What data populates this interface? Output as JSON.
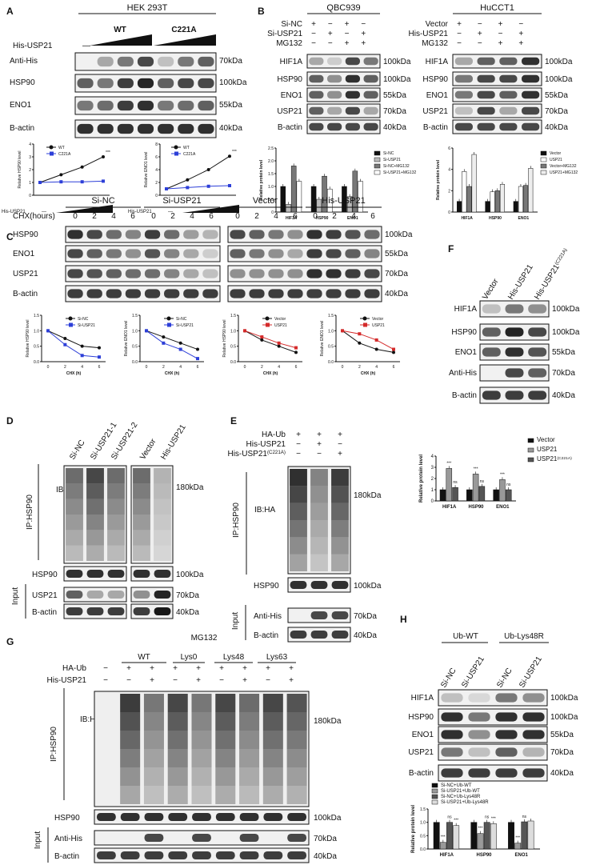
{
  "panels": {
    "A": {
      "letter": "A",
      "cell": "HEK 293T",
      "his_label": "His-USP21",
      "dash": "—",
      "wt": "WT",
      "mut": "C221A",
      "rows": [
        "Anti-His",
        "HSP90",
        "ENO1",
        "B-actin"
      ],
      "kda": [
        "70kDa",
        "100kDa",
        "55kDa",
        "40kDa"
      ],
      "charts": [
        {
          "type": "line",
          "xlabel": "His-USP21",
          "x_dash": "—",
          "ylabel": "Relative HSP90 level",
          "ylim": [
            0,
            4
          ],
          "yticks": [
            "0",
            "1",
            "2",
            "3",
            "4"
          ],
          "sig": "***",
          "series": [
            {
              "name": "WT",
              "values": [
                1,
                1.6,
                2.2,
                3.0
              ]
            },
            {
              "name": "C221A",
              "values": [
                1,
                1.05,
                1.05,
                1.1
              ]
            }
          ]
        },
        {
          "type": "line",
          "xlabel": "His-USP21",
          "x_dash": "—",
          "ylabel": "Relative ENO1 level",
          "ylim": [
            0,
            8
          ],
          "yticks": [
            "0",
            "2",
            "4",
            "6",
            "8"
          ],
          "sig": "***",
          "series": [
            {
              "name": "WT",
              "values": [
                1,
                2.4,
                4.0,
                6.1
              ]
            },
            {
              "name": "C221A",
              "values": [
                1,
                1.2,
                1.4,
                1.5
              ]
            }
          ]
        }
      ]
    },
    "B": {
      "letter": "B",
      "left": {
        "cell": "QBC939",
        "cond": [
          {
            "label": "Si-NC",
            "signs": [
              "+",
              "−",
              "+",
              "−"
            ]
          },
          {
            "label": "Si-USP21",
            "signs": [
              "−",
              "+",
              "−",
              "+"
            ]
          },
          {
            "label": "MG132",
            "signs": [
              "−",
              "−",
              "+",
              "+"
            ]
          }
        ],
        "rows": [
          "HIF1A",
          "HSP90",
          "ENO1",
          "USP21",
          "B-actin"
        ],
        "kda": [
          "100kDa",
          "100kDa",
          "55kDa",
          "70kDa",
          "40kDa"
        ]
      },
      "right": {
        "cell": "HuCCT1",
        "cond": [
          {
            "label": "Vector",
            "signs": [
              "+",
              "−",
              "+",
              "−"
            ]
          },
          {
            "label": "His-USP21",
            "signs": [
              "−",
              "+",
              "−",
              "+"
            ]
          },
          {
            "label": "MG132",
            "signs": [
              "−",
              "−",
              "+",
              "+"
            ]
          }
        ],
        "rows": [
          "HIF1A",
          "HSP90",
          "ENO1",
          "USP21",
          "B-actin"
        ],
        "kda": [
          "100kDa",
          "100kDa",
          "55kDa",
          "70kDa",
          "40kDa"
        ]
      },
      "charts": [
        {
          "type": "bar",
          "ylabel": "Relative protein level",
          "categories": [
            "HIF1A",
            "HSP90",
            "ENO1"
          ],
          "ylim": [
            0,
            2.5
          ],
          "yticks": [
            "0",
            "0.5",
            "1.0",
            "1.5",
            "2.0",
            "2.5"
          ],
          "series": [
            {
              "name": "Si-NC",
              "values": [
                1,
                1,
                1
              ]
            },
            {
              "name": "Si-USP21",
              "values": [
                0.3,
                0.5,
                0.6
              ]
            },
            {
              "name": "Si-NC+MG132",
              "values": [
                1.8,
                1.4,
                1.6
              ]
            },
            {
              "name": "Si-USP21+MG132",
              "values": [
                1.2,
                0.9,
                1.2
              ]
            }
          ]
        },
        {
          "type": "bar",
          "ylabel": "Relative protein level",
          "categories": [
            "HIF1A",
            "HSP90",
            "ENO1"
          ],
          "ylim": [
            0,
            6
          ],
          "yticks": [
            "0",
            "2",
            "4",
            "6"
          ],
          "series": [
            {
              "name": "Vector",
              "values": [
                1,
                1,
                1
              ]
            },
            {
              "name": "USP21",
              "values": [
                3.8,
                1.9,
                2.4
              ]
            },
            {
              "name": "Vector+MG132",
              "values": [
                2.4,
                2.0,
                2.5
              ]
            },
            {
              "name": "USP21+MG132",
              "values": [
                5.4,
                2.6,
                4.1
              ]
            }
          ]
        }
      ]
    },
    "C": {
      "letter": "C",
      "chx": "CHX(hours)",
      "times": [
        "0",
        "2",
        "4",
        "6"
      ],
      "groups": [
        "Si-NC",
        "Si-USP21",
        "Vector",
        "His-USP21"
      ],
      "rows": [
        "HSP90",
        "ENO1",
        "USP21",
        "B-actin"
      ],
      "kda": [
        "100kDa",
        "55kDa",
        "70kDa",
        "40kDa"
      ],
      "charts": [
        {
          "type": "line",
          "xlabel": "CHX (h)",
          "ylabel": "Relative HSP90 level",
          "x": [
            0,
            2,
            4,
            6
          ],
          "ylim": [
            0,
            1.5
          ],
          "yticks": [
            "0.0",
            "0.5",
            "1.0",
            "1.5"
          ],
          "series": [
            {
              "name": "Si-NC",
              "values": [
                1,
                0.75,
                0.5,
                0.45
              ]
            },
            {
              "name": "Si-USP21",
              "values": [
                1,
                0.55,
                0.2,
                0.15
              ]
            }
          ]
        },
        {
          "type": "line",
          "xlabel": "CHX (h)",
          "ylabel": "Relative ENO1 level",
          "x": [
            0,
            2,
            4,
            6
          ],
          "ylim": [
            0,
            1.5
          ],
          "yticks": [
            "0.0",
            "0.5",
            "1.0",
            "1.5"
          ],
          "series": [
            {
              "name": "Si-NC",
              "values": [
                1,
                0.8,
                0.6,
                0.4
              ]
            },
            {
              "name": "Si-USP21",
              "values": [
                1,
                0.6,
                0.4,
                0.1
              ]
            }
          ]
        },
        {
          "type": "line",
          "xlabel": "CHX (h)",
          "ylabel": "Relative HSP90 level",
          "x": [
            0,
            2,
            4,
            6
          ],
          "ylim": [
            0,
            1.5
          ],
          "yticks": [
            "0.0",
            "0.5",
            "1.0",
            "1.5"
          ],
          "series": [
            {
              "name": "Vector",
              "values": [
                1,
                0.7,
                0.5,
                0.3
              ]
            },
            {
              "name": "USP21",
              "values": [
                1,
                0.8,
                0.6,
                0.45
              ]
            }
          ]
        },
        {
          "type": "line",
          "xlabel": "CHX (h)",
          "ylabel": "Relative ENO1 level",
          "x": [
            0,
            2,
            4,
            6
          ],
          "ylim": [
            0,
            1.5
          ],
          "yticks": [
            "0.0",
            "0.5",
            "1.0",
            "1.5"
          ],
          "series": [
            {
              "name": "Vector",
              "values": [
                1,
                0.6,
                0.4,
                0.3
              ]
            },
            {
              "name": "USP21",
              "values": [
                1,
                0.9,
                0.7,
                0.4
              ]
            }
          ]
        }
      ]
    },
    "D": {
      "letter": "D",
      "lanes": [
        "Si-NC",
        "Si-USP21-1",
        "Si-USP21-2",
        "Vector",
        "His-USP21"
      ],
      "ip": "IP:HSP90",
      "ib": "IB:HA",
      "kda_ha": "180kDa",
      "rows": [
        "HSP90",
        "USP21",
        "B-actin"
      ],
      "kda": [
        "100kDa",
        "70kDa",
        "40kDa"
      ],
      "input": "Input"
    },
    "E": {
      "letter": "E",
      "cond": [
        {
          "label": "HA-Ub",
          "signs": [
            "+",
            "+",
            "+"
          ]
        },
        {
          "label": "His-USP21",
          "signs": [
            "−",
            "+",
            "−"
          ]
        },
        {
          "label": "His-USP21",
          "sup": "(C221A)",
          "signs": [
            "−",
            "−",
            "+"
          ]
        }
      ],
      "ip": "IP:HSP90",
      "ib": "IB:HA",
      "kda_ha": "180kDa",
      "rows": [
        "HSP90",
        "Anti-His",
        "B-actin"
      ],
      "kda": [
        "100kDa",
        "70kDa",
        "40kDa"
      ],
      "input": "Input"
    },
    "F": {
      "letter": "F",
      "lanes": [
        "Vector",
        "His-USP21",
        "His-USP21"
      ],
      "lane_sup": "(C221A)",
      "rows": [
        "HIF1A",
        "HSP90",
        "ENO1",
        "Anti-His",
        "B-actin"
      ],
      "kda": [
        "100kDa",
        "100kDa",
        "55kDa",
        "70kDa",
        "40kDa"
      ],
      "chart": {
        "type": "bar",
        "ylabel": "Relative protein level",
        "categories": [
          "HIF1A",
          "HSP90",
          "ENO1"
        ],
        "ylim": [
          0,
          4
        ],
        "yticks": [
          "0",
          "1",
          "2",
          "3",
          "4"
        ],
        "sig": [
          "***",
          "ns",
          "***",
          "ns",
          "***",
          "ns"
        ],
        "series": [
          {
            "name": "Vector",
            "values": [
              1,
              1,
              1
            ]
          },
          {
            "name": "USP21",
            "values": [
              2.9,
              2.4,
              1.9
            ]
          },
          {
            "name": "USP21",
            "sup": "(C221A)",
            "values": [
              1.2,
              1.3,
              1.0
            ]
          }
        ]
      }
    },
    "G": {
      "letter": "G",
      "mg": "MG132",
      "groups": [
        "WT",
        "Lys0",
        "Lys48",
        "Lys63"
      ],
      "cond": [
        {
          "label": "HA-Ub",
          "signs": [
            "−",
            "+",
            "+",
            "+",
            "+",
            "+",
            "+",
            "+",
            "+"
          ]
        },
        {
          "label": "His-USP21",
          "signs": [
            "−",
            "−",
            "+",
            "−",
            "+",
            "−",
            "+",
            "−",
            "+"
          ]
        }
      ],
      "ip": "IP:HSP90",
      "ib": "IB:HA",
      "kda_ha": "180kDa",
      "rows": [
        "HSP90",
        "Anti-His",
        "B-actin"
      ],
      "kda": [
        "100kDa",
        "70kDa",
        "40kDa"
      ],
      "input": "Input"
    },
    "H": {
      "letter": "H",
      "groups": [
        "Ub-WT",
        "Ub-Lys48R"
      ],
      "lanes": [
        "Si-NC",
        "Si-USP21",
        "Si-NC",
        "Si-USP21"
      ],
      "rows": [
        "HIF1A",
        "HSP90",
        "ENO1",
        "USP21",
        "B-actin"
      ],
      "kda": [
        "100kDa",
        "100kDa",
        "55kDa",
        "70kDa",
        "40kDa"
      ],
      "chart": {
        "type": "bar",
        "ylabel": "Relative protein level",
        "categories": [
          "HIF1A",
          "HSP90",
          "ENO1"
        ],
        "ylim": [
          0,
          1.5
        ],
        "yticks": [
          "0.0",
          "0.5",
          "1.0",
          "1.5"
        ],
        "sig": [
          "***",
          "ns",
          "***",
          "ns",
          "***",
          "ns"
        ],
        "series": [
          {
            "name": "Si-NC+Ub-WT",
            "values": [
              1,
              1,
              1
            ]
          },
          {
            "name": "Si-USP21+Ub-WT",
            "values": [
              0.25,
              0.58,
              0.22
            ]
          },
          {
            "name": "Si-NC+Ub-Lys48R",
            "values": [
              1.0,
              1.0,
              1.02
            ]
          },
          {
            "name": "Si-USP21+Ub-Lys48R",
            "values": [
              0.88,
              0.95,
              1.05
            ]
          }
        ]
      }
    }
  }
}
